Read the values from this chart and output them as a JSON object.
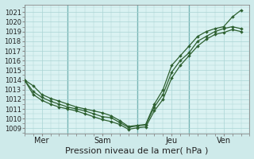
{
  "xlabel": "Pression niveau de la mer( hPa )",
  "background_color": "#ceeaea",
  "plot_bg_color": "#daf2f2",
  "grid_color": "#aad4d4",
  "vline_color": "#6aadad",
  "line_color": "#2d6030",
  "ylim_min": 1008.5,
  "ylim_max": 1021.8,
  "yticks": [
    1009,
    1010,
    1011,
    1012,
    1013,
    1014,
    1015,
    1016,
    1017,
    1018,
    1019,
    1020,
    1021
  ],
  "xtick_labels": [
    "Mer",
    "Sam",
    "Jeu",
    "Ven"
  ],
  "xtick_positions": [
    2,
    9,
    17,
    23
  ],
  "vline_positions": [
    0,
    5,
    13,
    19
  ],
  "xlim_min": 0,
  "xlim_max": 26,
  "n_points": 26,
  "line1_y": [
    1014.0,
    1013.4,
    1012.5,
    1012.1,
    1011.8,
    1011.5,
    1011.2,
    1011.0,
    1010.8,
    1010.6,
    1010.3,
    1009.8,
    1009.2,
    1009.3,
    1009.4,
    1011.5,
    1013.0,
    1015.5,
    1016.5,
    1017.5,
    1018.5,
    1019.0,
    1019.3,
    1019.5,
    1020.5,
    1021.2
  ],
  "line2_y": [
    1014.0,
    1012.8,
    1012.2,
    1011.8,
    1011.5,
    1011.2,
    1011.0,
    1010.8,
    1010.5,
    1010.2,
    1010.1,
    1009.6,
    1009.1,
    1009.25,
    1009.35,
    1011.2,
    1012.5,
    1014.8,
    1016.0,
    1016.8,
    1018.0,
    1018.5,
    1019.0,
    1019.3,
    1019.5,
    1019.3
  ],
  "line3_y": [
    1014.0,
    1012.5,
    1011.9,
    1011.5,
    1011.2,
    1011.0,
    1010.8,
    1010.5,
    1010.2,
    1009.9,
    1009.7,
    1009.4,
    1008.9,
    1009.05,
    1009.15,
    1010.8,
    1012.0,
    1014.2,
    1015.5,
    1016.5,
    1017.5,
    1018.2,
    1018.7,
    1018.9,
    1019.2,
    1019.0
  ],
  "ytick_fontsize": 6,
  "xtick_fontsize": 7,
  "xlabel_fontsize": 8
}
